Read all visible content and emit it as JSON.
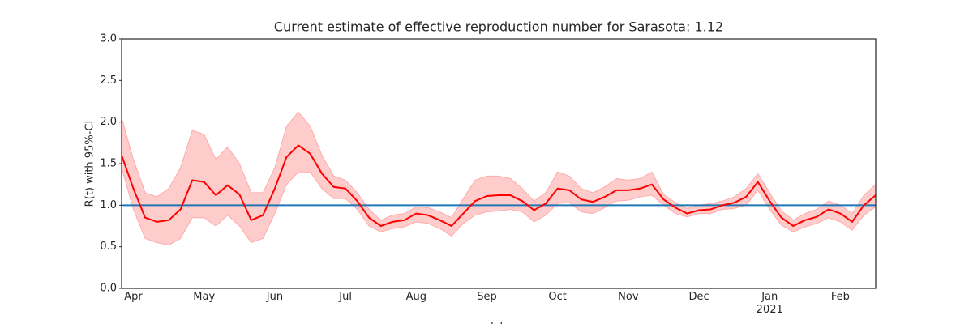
{
  "chart_data": {
    "type": "line",
    "title": "Current estimate of effective reproduction number for Sarasota: 1.12",
    "ylabel": "R(t) with 95%-CI",
    "xlabel": "date",
    "categories": [
      null,
      "Apr",
      null,
      null,
      null,
      null,
      null,
      "May",
      null,
      null,
      null,
      null,
      null,
      "Jun",
      null,
      null,
      null,
      null,
      null,
      "Jul",
      null,
      null,
      null,
      null,
      null,
      "Aug",
      null,
      null,
      null,
      null,
      null,
      "Sep",
      null,
      null,
      null,
      null,
      null,
      "Oct",
      null,
      null,
      null,
      null,
      null,
      "Nov",
      null,
      null,
      null,
      null,
      null,
      "Dec",
      null,
      null,
      null,
      null,
      null,
      "Jan\n2021",
      null,
      null,
      null,
      null,
      null,
      "Feb",
      null,
      null,
      null
    ],
    "series": [
      {
        "color": "#ff0000",
        "values": [
          1.6,
          1.2,
          0.85,
          0.8,
          0.82,
          0.95,
          1.3,
          1.28,
          1.12,
          1.24,
          1.13,
          0.82,
          0.88,
          1.2,
          1.58,
          1.72,
          1.62,
          1.38,
          1.22,
          1.2,
          1.05,
          0.85,
          0.75,
          0.8,
          0.82,
          0.9,
          0.88,
          0.82,
          0.75,
          0.9,
          1.05,
          1.11,
          1.12,
          1.12,
          1.05,
          0.94,
          1.02,
          1.2,
          1.18,
          1.07,
          1.04,
          1.1,
          1.18,
          1.18,
          1.2,
          1.25,
          1.07,
          0.97,
          0.9,
          0.94,
          0.95,
          1.0,
          1.03,
          1.1,
          1.28,
          1.05,
          0.85,
          0.75,
          0.82,
          0.86,
          0.95,
          0.9,
          0.8,
          1.0,
          1.12
        ]
      }
    ],
    "band": {
      "color": "#ffcccc",
      "lower": [
        1.45,
        0.95,
        0.6,
        0.55,
        0.52,
        0.6,
        0.85,
        0.85,
        0.75,
        0.88,
        0.75,
        0.55,
        0.6,
        0.9,
        1.25,
        1.4,
        1.4,
        1.2,
        1.08,
        1.08,
        0.95,
        0.75,
        0.68,
        0.72,
        0.74,
        0.8,
        0.78,
        0.72,
        0.63,
        0.78,
        0.88,
        0.92,
        0.93,
        0.95,
        0.92,
        0.8,
        0.88,
        1.02,
        1.03,
        0.92,
        0.9,
        0.97,
        1.05,
        1.06,
        1.1,
        1.12,
        1.0,
        0.9,
        0.86,
        0.9,
        0.9,
        0.95,
        0.96,
        1.0,
        1.18,
        0.95,
        0.76,
        0.68,
        0.74,
        0.78,
        0.85,
        0.8,
        0.7,
        0.88,
        0.98
      ],
      "upper": [
        2.05,
        1.55,
        1.15,
        1.1,
        1.2,
        1.45,
        1.9,
        1.85,
        1.55,
        1.7,
        1.5,
        1.15,
        1.15,
        1.45,
        1.95,
        2.12,
        1.95,
        1.6,
        1.35,
        1.3,
        1.15,
        0.95,
        0.82,
        0.88,
        0.9,
        0.98,
        0.97,
        0.92,
        0.85,
        1.08,
        1.3,
        1.35,
        1.35,
        1.32,
        1.2,
        1.05,
        1.15,
        1.4,
        1.35,
        1.2,
        1.15,
        1.22,
        1.32,
        1.3,
        1.32,
        1.4,
        1.13,
        1.03,
        0.96,
        1.0,
        1.02,
        1.05,
        1.1,
        1.2,
        1.38,
        1.15,
        0.93,
        0.82,
        0.9,
        0.95,
        1.05,
        1.0,
        0.9,
        1.12,
        1.25
      ]
    },
    "hline": {
      "value": 1.0,
      "color": "#1f77b4"
    },
    "ylim": [
      0,
      3
    ],
    "yticks": [
      {
        "value": 0,
        "label": "0.0"
      },
      {
        "value": 0.5,
        "label": "0.5"
      },
      {
        "value": 1,
        "label": "1.0"
      },
      {
        "value": 1.5,
        "label": "1.5"
      },
      {
        "value": 2,
        "label": "2.0"
      },
      {
        "value": 2.5,
        "label": "2.5"
      },
      {
        "value": 3,
        "label": "3.0"
      }
    ],
    "grid": false
  }
}
